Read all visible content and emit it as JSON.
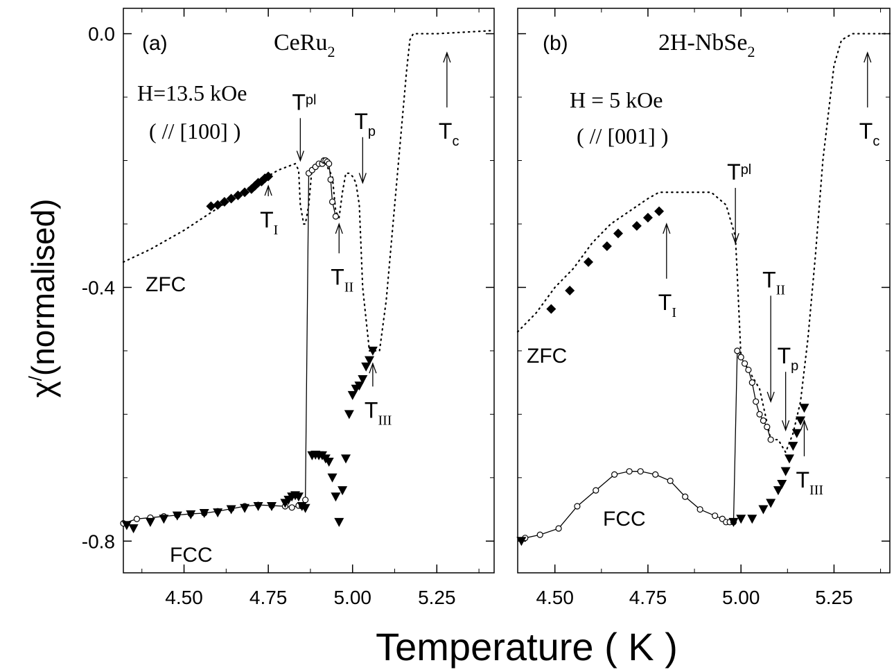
{
  "figure": {
    "ylabel_main": "χ",
    "ylabel_prime": "/",
    "ylabel_rest": "(normalised)",
    "xlabel": "Temperature ( K )"
  },
  "chart_data": [
    {
      "type": "scatter",
      "panel_label": "(a)",
      "sample": "CeRu",
      "sample_sub": "2",
      "field_line1": "H=13.5 kOe",
      "field_line2": "( // [100] )",
      "xlim": [
        4.32,
        5.42
      ],
      "ylim": [
        -0.85,
        0.04
      ],
      "xticks": [
        4.5,
        4.75,
        5.0,
        5.25
      ],
      "xtick_labels": [
        "4.50",
        "4.75",
        "5.00",
        "5.25"
      ],
      "yticks": [
        0.0,
        -0.4,
        -0.8
      ],
      "ytick_labels": [
        "0.0",
        "-0.4",
        "-0.8"
      ],
      "grid": false,
      "curve_labels": {
        "zfc": "ZFC",
        "fcc": "FCC"
      },
      "series": [
        {
          "key": "zfc",
          "marker": "dotted-line",
          "x": [
            4.32,
            4.4,
            4.5,
            4.6,
            4.7,
            4.78,
            4.83,
            4.84,
            4.845,
            4.855,
            4.86,
            4.87,
            4.88,
            4.9,
            4.92,
            4.94,
            4.95,
            4.96,
            4.97,
            4.98,
            4.99,
            5.0,
            5.01,
            5.02,
            5.03,
            5.05,
            5.08,
            5.1,
            5.12,
            5.14,
            5.16,
            5.17,
            5.18,
            5.25,
            5.42
          ],
          "y": [
            -0.36,
            -0.34,
            -0.31,
            -0.275,
            -0.24,
            -0.215,
            -0.205,
            -0.215,
            -0.27,
            -0.3,
            -0.3,
            -0.27,
            -0.21,
            -0.205,
            -0.205,
            -0.225,
            -0.28,
            -0.29,
            -0.25,
            -0.22,
            -0.22,
            -0.225,
            -0.235,
            -0.27,
            -0.4,
            -0.5,
            -0.5,
            -0.42,
            -0.3,
            -0.18,
            -0.06,
            -0.01,
            0.0,
            0.0,
            0.005
          ]
        },
        {
          "key": "zfc-diamonds",
          "marker": "diamond",
          "x": [
            4.58,
            4.6,
            4.62,
            4.64,
            4.66,
            4.68,
            4.7,
            4.71,
            4.72,
            4.73,
            4.74,
            4.75
          ],
          "y": [
            -0.272,
            -0.27,
            -0.265,
            -0.26,
            -0.255,
            -0.25,
            -0.245,
            -0.24,
            -0.235,
            -0.233,
            -0.228,
            -0.225
          ]
        },
        {
          "key": "open-circles",
          "marker": "open-circle",
          "x": [
            4.32,
            4.36,
            4.4,
            4.44,
            4.48,
            4.52,
            4.56,
            4.6,
            4.64,
            4.68,
            4.72,
            4.76,
            4.8,
            4.82,
            4.84,
            4.85,
            4.86,
            4.87,
            4.88,
            4.89,
            4.9,
            4.91,
            4.915,
            4.92,
            4.925,
            4.93,
            4.935,
            4.94,
            4.95
          ],
          "y": [
            -0.772,
            -0.765,
            -0.763,
            -0.761,
            -0.759,
            -0.757,
            -0.756,
            -0.753,
            -0.749,
            -0.745,
            -0.743,
            -0.744,
            -0.745,
            -0.747,
            -0.744,
            -0.745,
            -0.735,
            -0.22,
            -0.215,
            -0.21,
            -0.205,
            -0.205,
            -0.2,
            -0.2,
            -0.202,
            -0.205,
            -0.23,
            -0.265,
            -0.288
          ]
        },
        {
          "key": "fcc-triangles",
          "marker": "down-triangle",
          "x": [
            4.33,
            4.35,
            4.4,
            4.44,
            4.48,
            4.52,
            4.56,
            4.6,
            4.64,
            4.68,
            4.72,
            4.76,
            4.8,
            4.81,
            4.82,
            4.83,
            4.84,
            4.85,
            4.86,
            4.88,
            4.89,
            4.9,
            4.91,
            4.92,
            4.93,
            4.94,
            4.95,
            4.96,
            4.97,
            4.98,
            4.99,
            5.0,
            5.01,
            5.02,
            5.03,
            5.04,
            5.05,
            5.06
          ],
          "y": [
            -0.775,
            -0.78,
            -0.77,
            -0.765,
            -0.76,
            -0.758,
            -0.756,
            -0.755,
            -0.75,
            -0.748,
            -0.745,
            -0.745,
            -0.74,
            -0.735,
            -0.73,
            -0.728,
            -0.73,
            -0.745,
            -0.748,
            -0.665,
            -0.664,
            -0.665,
            -0.665,
            -0.67,
            -0.675,
            -0.7,
            -0.73,
            -0.77,
            -0.72,
            -0.67,
            -0.6,
            -0.57,
            -0.56,
            -0.555,
            -0.545,
            -0.525,
            -0.515,
            -0.5
          ]
        }
      ],
      "annotations": [
        {
          "text": "T",
          "sub": "pl",
          "x": 4.845,
          "y": -0.12,
          "arrow": "down",
          "to": -0.2
        },
        {
          "text": "T",
          "sub": "p",
          "x": 5.03,
          "y": -0.15,
          "arrow": "down",
          "to": -0.235
        },
        {
          "text": "T",
          "sub": "c",
          "x": 5.28,
          "y": -0.16,
          "arrow": "up",
          "to": -0.03
        },
        {
          "text": "T",
          "sub": "I",
          "x": 4.75,
          "y": -0.3,
          "arrow": "up",
          "to": -0.24
        },
        {
          "text": "T",
          "sub": "II",
          "x": 4.96,
          "y": -0.39,
          "arrow": "up",
          "to": -0.3
        },
        {
          "text": "T",
          "sub": "III",
          "x": 5.06,
          "y": -0.6,
          "arrow": "up",
          "to": -0.52
        }
      ]
    },
    {
      "type": "scatter",
      "panel_label": "(b)",
      "sample": "2H-NbSe",
      "sample_sub": "2",
      "field_line1": "H = 5 kOe",
      "field_line2": "( // [001] )",
      "xlim": [
        4.4,
        5.4
      ],
      "ylim": [
        -0.85,
        0.04
      ],
      "xticks": [
        4.5,
        4.75,
        5.0,
        5.25
      ],
      "xtick_labels": [
        "4.50",
        "4.75",
        "5.00",
        "5.25"
      ],
      "yticks": [
        0.0,
        -0.4,
        -0.8
      ],
      "ytick_labels": [
        "",
        "",
        ""
      ],
      "grid": false,
      "curve_labels": {
        "zfc": "ZFC",
        "fcc": "FCC"
      },
      "series": [
        {
          "key": "zfc",
          "marker": "dotted-line",
          "x": [
            4.4,
            4.45,
            4.5,
            4.55,
            4.6,
            4.65,
            4.7,
            4.75,
            4.78,
            4.85,
            4.92,
            4.96,
            4.985,
            4.99,
            5.0,
            5.05,
            5.08,
            5.1,
            5.11,
            5.12,
            5.14,
            5.16,
            5.18,
            5.2,
            5.22,
            5.25,
            5.27,
            5.3,
            5.4
          ],
          "y": [
            -0.47,
            -0.44,
            -0.4,
            -0.37,
            -0.33,
            -0.3,
            -0.28,
            -0.26,
            -0.25,
            -0.25,
            -0.25,
            -0.27,
            -0.32,
            -0.38,
            -0.51,
            -0.56,
            -0.64,
            -0.64,
            -0.65,
            -0.66,
            -0.63,
            -0.58,
            -0.48,
            -0.35,
            -0.2,
            -0.05,
            -0.01,
            0.0,
            0.0
          ]
        },
        {
          "key": "zfc-diamonds",
          "marker": "diamond",
          "x": [
            4.49,
            4.54,
            4.59,
            4.64,
            4.67,
            4.72,
            4.75,
            4.78
          ],
          "y": [
            -0.434,
            -0.405,
            -0.36,
            -0.335,
            -0.315,
            -0.303,
            -0.29,
            -0.28
          ]
        },
        {
          "key": "open-circles",
          "marker": "open-circle",
          "x": [
            4.42,
            4.46,
            4.51,
            4.56,
            4.61,
            4.66,
            4.7,
            4.73,
            4.77,
            4.81,
            4.85,
            4.89,
            4.93,
            4.95,
            4.96,
            4.97,
            4.98,
            4.99,
            5.0,
            5.01,
            5.02,
            5.03,
            5.04,
            5.05,
            5.06,
            5.07,
            5.08
          ],
          "y": [
            -0.795,
            -0.79,
            -0.78,
            -0.745,
            -0.72,
            -0.695,
            -0.69,
            -0.69,
            -0.695,
            -0.705,
            -0.73,
            -0.75,
            -0.76,
            -0.765,
            -0.77,
            -0.77,
            -0.77,
            -0.5,
            -0.51,
            -0.52,
            -0.53,
            -0.55,
            -0.58,
            -0.6,
            -0.61,
            -0.62,
            -0.64
          ]
        },
        {
          "key": "fcc-triangles",
          "marker": "down-triangle",
          "x": [
            4.41,
            4.98,
            5.0,
            5.03,
            5.06,
            5.08,
            5.1,
            5.11,
            5.12,
            5.13,
            5.14,
            5.15,
            5.16,
            5.17
          ],
          "y": [
            -0.8,
            -0.77,
            -0.765,
            -0.765,
            -0.75,
            -0.74,
            -0.72,
            -0.71,
            -0.69,
            -0.67,
            -0.65,
            -0.63,
            -0.61,
            -0.59
          ]
        }
      ],
      "annotations": [
        {
          "text": "T",
          "sub": "pl",
          "x": 4.985,
          "y": -0.23,
          "arrow": "down",
          "to": -0.33
        },
        {
          "text": "T",
          "sub": "c",
          "x": 5.34,
          "y": -0.16,
          "arrow": "up",
          "to": -0.03
        },
        {
          "text": "T",
          "sub": "I",
          "x": 4.8,
          "y": -0.43,
          "arrow": "up",
          "to": -0.3
        },
        {
          "text": "T",
          "sub": "II",
          "x": 5.08,
          "y": -0.4,
          "arrow": "down",
          "to": -0.58
        },
        {
          "text": "T",
          "sub": "p",
          "x": 5.12,
          "y": -0.52,
          "arrow": "down",
          "to": -0.625
        },
        {
          "text": "T",
          "sub": "III",
          "x": 5.17,
          "y": -0.71,
          "arrow": "up",
          "to": -0.61
        }
      ]
    }
  ]
}
